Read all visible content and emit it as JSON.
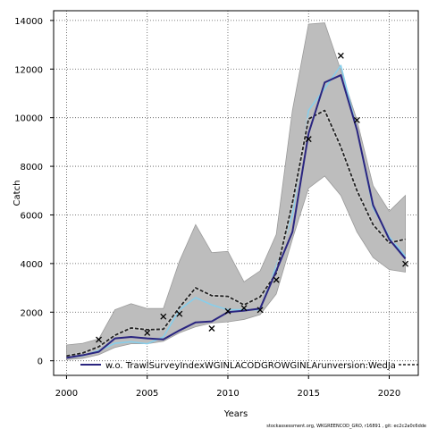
{
  "chart_data": {
    "type": "line",
    "xlabel": "Years",
    "ylabel": "Catch",
    "xlim": [
      1999.2,
      2021.8
    ],
    "ylim": [
      -600,
      14400
    ],
    "xticks": [
      2000,
      2005,
      2010,
      2015,
      2020
    ],
    "yticks": [
      0,
      2000,
      4000,
      6000,
      8000,
      10000,
      12000,
      14000
    ],
    "grid": true,
    "legend": {
      "position": "bottom",
      "label": "w.o. TrawlSurveyIndexWGINLACODGROWGINLArunversion:WedJa"
    },
    "colors": {
      "band": "#bdbdbd",
      "band_edge": "#9a9a9a",
      "dashed_line": "#222222",
      "blue_line": "#2a2580",
      "light_blue_line": "#87ceeb",
      "markers": "#000000"
    },
    "x": [
      2000,
      2001,
      2002,
      2003,
      2004,
      2005,
      2006,
      2007,
      2008,
      2009,
      2010,
      2011,
      2012,
      2013,
      2014,
      2015,
      2016,
      2017,
      2018,
      2019,
      2020,
      2021
    ],
    "band_upper": [
      650,
      720,
      900,
      2100,
      2350,
      2150,
      2150,
      4100,
      5600,
      4450,
      4500,
      3250,
      3700,
      5200,
      10300,
      13850,
      13900,
      11950,
      9900,
      7200,
      6150,
      6800
    ],
    "band_lower": [
      50,
      100,
      250,
      550,
      700,
      700,
      800,
      1150,
      1400,
      1550,
      1600,
      1700,
      1900,
      2750,
      5000,
      7100,
      7600,
      6800,
      5300,
      4250,
      3750,
      3650
    ],
    "series": [
      {
        "name": "w.o. TrawlSurveyIndexWGINLACODGROWGINLArunversion:WedJa",
        "style": "dashed",
        "values": [
          200,
          320,
          580,
          1050,
          1350,
          1280,
          1300,
          2200,
          3000,
          2680,
          2650,
          2300,
          2630,
          3600,
          6500,
          9950,
          10300,
          8800,
          7000,
          5600,
          4850,
          5000
        ]
      },
      {
        "style": "solid-blue",
        "values": [
          120,
          230,
          370,
          920,
          980,
          920,
          880,
          1250,
          1580,
          1620,
          2000,
          2060,
          2150,
          3700,
          5300,
          9350,
          11450,
          11750,
          9500,
          6400,
          5000,
          4200
        ]
      },
      {
        "style": "solid-lightblue",
        "values": [
          130,
          210,
          420,
          720,
          780,
          700,
          980,
          2100,
          2600,
          2300,
          2100,
          2100,
          2100,
          3900,
          6000,
          10300,
          11200,
          12150,
          9500,
          6300,
          5100,
          4300
        ]
      }
    ],
    "observations": {
      "x": [
        2002,
        2005,
        2006,
        2007,
        2009,
        2010,
        2011,
        2012,
        2013,
        2015,
        2017,
        2018,
        2021
      ],
      "y": [
        870,
        1150,
        1820,
        1930,
        1330,
        2040,
        2170,
        2090,
        3330,
        9120,
        12550,
        9900,
        3990
      ]
    },
    "footer": "stockassessment.org, WKGREENCOD_GRO, r16891 , git: ec2c2a0c6dde"
  }
}
